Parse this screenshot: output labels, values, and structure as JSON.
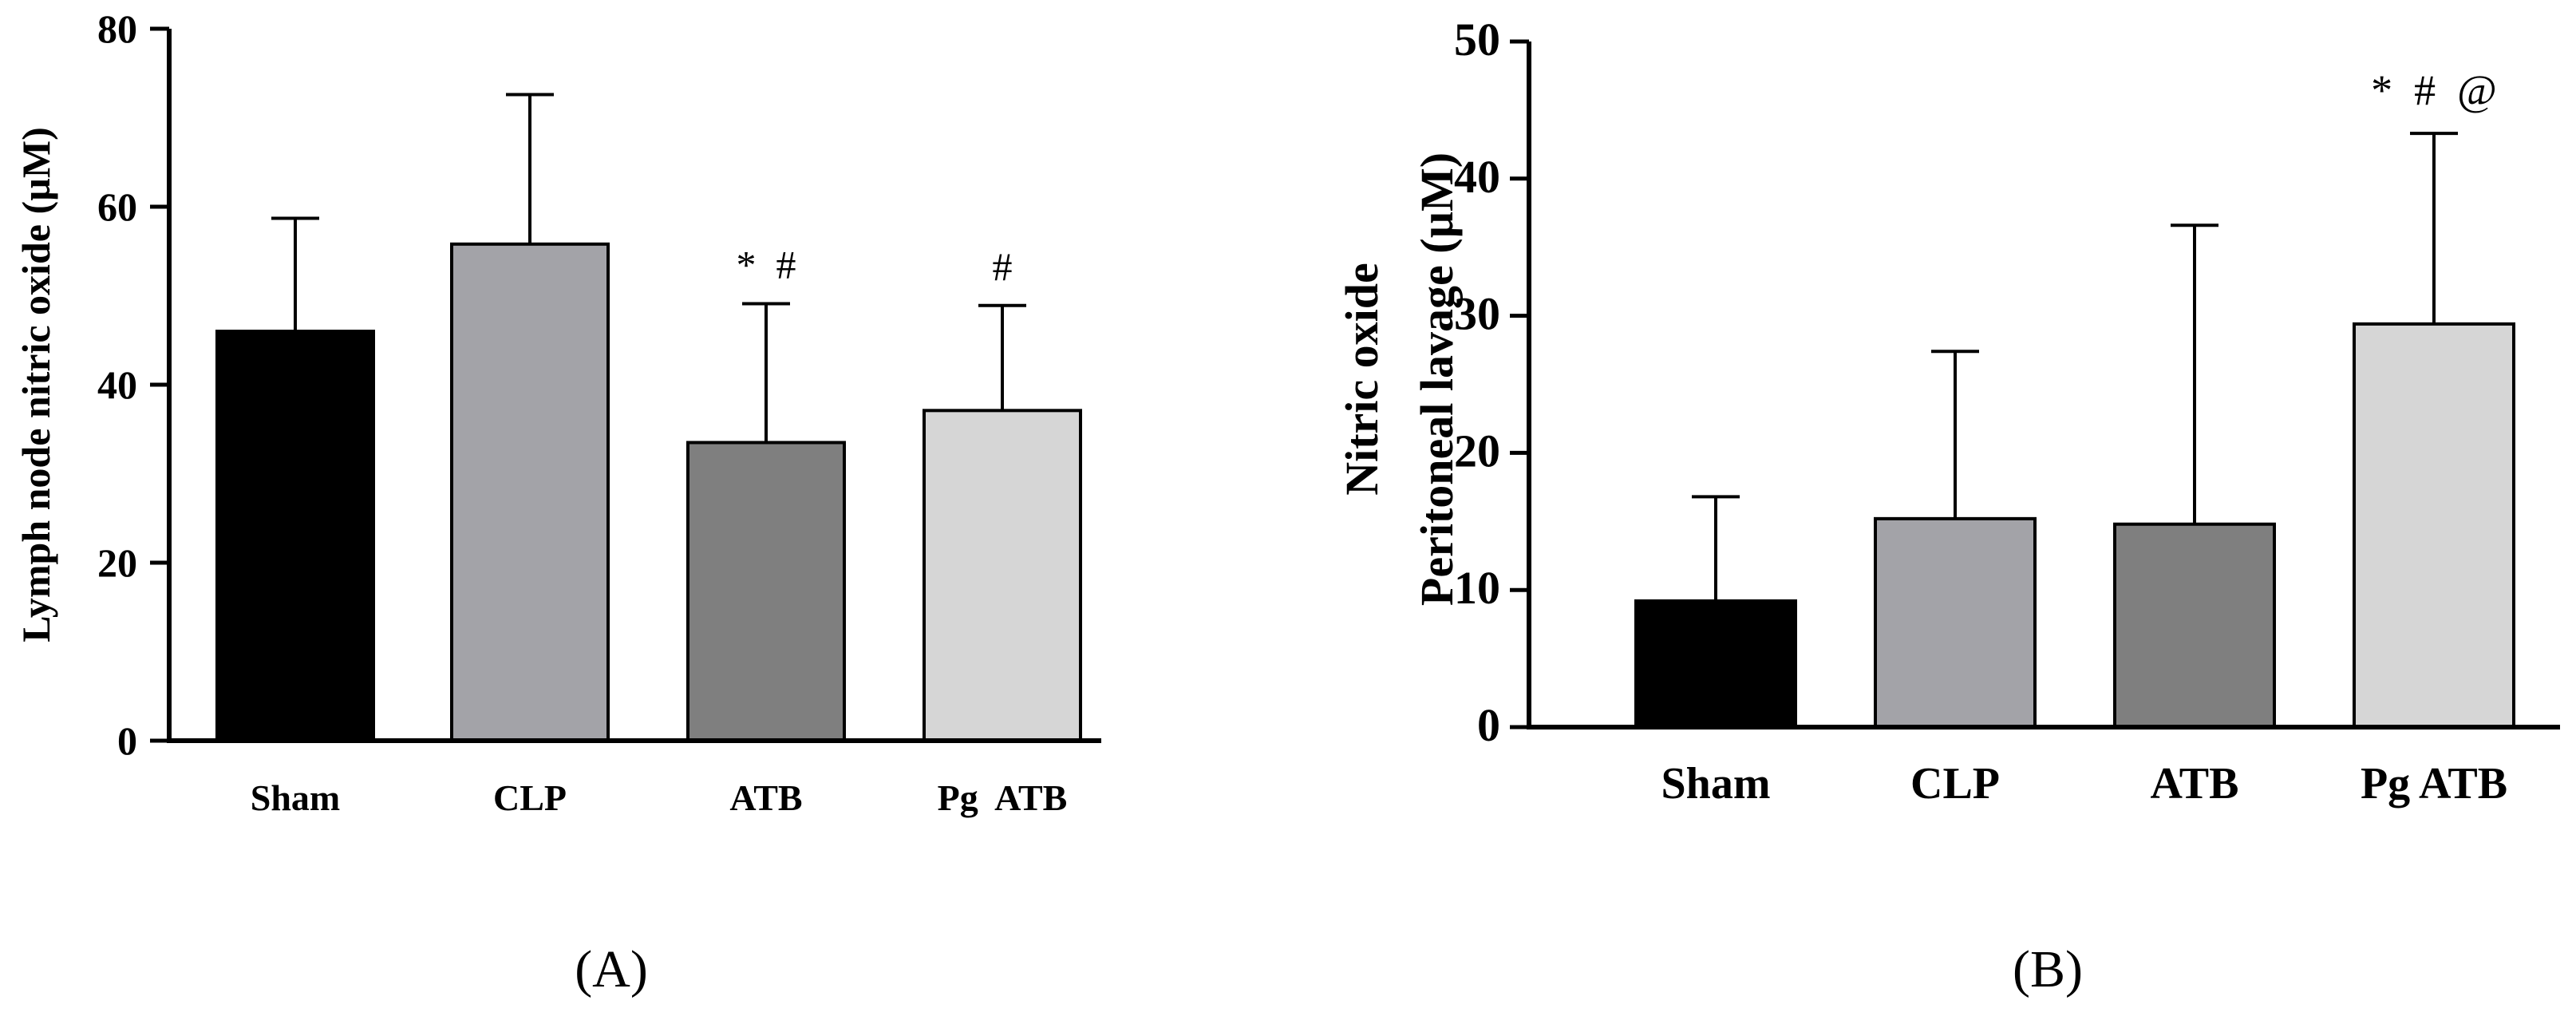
{
  "chart_data": [
    {
      "type": "bar",
      "panel": "(A)",
      "ylabel": "Lymph node nitric oxide (µM)",
      "ylim": [
        0,
        80
      ],
      "yticks": [
        0,
        20,
        40,
        60,
        80
      ],
      "categories": [
        "Sham",
        "CLP",
        "ATB",
        "Pg  ATB"
      ],
      "values": [
        46,
        55.8,
        33.5,
        37.1
      ],
      "error_upper": [
        58.7,
        72.6,
        49.1,
        48.9
      ],
      "colors": [
        "#000000",
        "#a3a3a8",
        "#7f7f7f",
        "#d6d6d6"
      ],
      "annotations": [
        "",
        "",
        "*  #",
        "#"
      ]
    },
    {
      "type": "bar",
      "panel": "(B)",
      "ylabel_lines": [
        "Nitric oxide",
        "Peritoneal lavage (µM)"
      ],
      "ylim": [
        0,
        50
      ],
      "yticks": [
        0,
        10,
        20,
        30,
        40,
        50
      ],
      "categories": [
        "Sham",
        "CLP",
        "ATB",
        "Pg ATB"
      ],
      "values": [
        9.2,
        15.2,
        14.8,
        29.4
      ],
      "error_upper": [
        16.8,
        27.4,
        36.6,
        43.3
      ],
      "colors": [
        "#000000",
        "#a3a3a8",
        "#7f7f7f",
        "#d6d6d6"
      ],
      "annotations": [
        "",
        "",
        "",
        "*  #  @"
      ]
    }
  ]
}
